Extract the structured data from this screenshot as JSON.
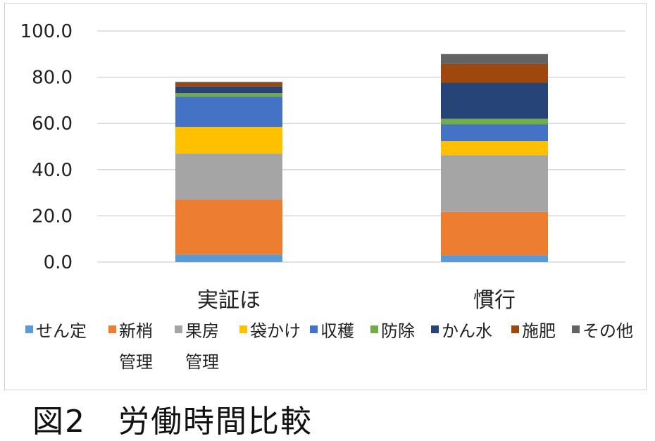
{
  "chart_data": {
    "type": "bar",
    "stacked": true,
    "title": "",
    "xlabel": "",
    "ylabel": "",
    "ylim": [
      0,
      100
    ],
    "yticks": [
      "0.0",
      "20.0",
      "40.0",
      "60.0",
      "80.0",
      "100.0"
    ],
    "grid": true,
    "legend_position": "bottom",
    "categories": [
      "実証ほ",
      "慣行"
    ],
    "series": [
      {
        "name": "せん定",
        "color": "#5b9bd5",
        "values": [
          3.3,
          3.0
        ]
      },
      {
        "name": "新梢管理",
        "color": "#ed7d31",
        "values": [
          23.7,
          18.7
        ]
      },
      {
        "name": "果房管理",
        "color": "#a5a5a5",
        "values": [
          20.0,
          24.6
        ]
      },
      {
        "name": "袋かけ",
        "color": "#ffc000",
        "values": [
          11.5,
          6.1
        ]
      },
      {
        "name": "収穫",
        "color": "#4472c4",
        "values": [
          13.1,
          7.2
        ]
      },
      {
        "name": "防除",
        "color": "#70ad47",
        "values": [
          1.5,
          2.4
        ]
      },
      {
        "name": "かん水",
        "color": "#264478",
        "values": [
          2.9,
          15.6
        ]
      },
      {
        "name": "施肥",
        "color": "#9e480e",
        "values": [
          1.6,
          8.1
        ]
      },
      {
        "name": "その他",
        "color": "#636363",
        "values": [
          0.4,
          4.3
        ]
      }
    ],
    "legend_lines": [
      {
        "items": [
          "せん定",
          "新梢",
          "果房",
          "袋かけ",
          "収穫",
          "防除",
          "かん水",
          "施肥",
          "その他"
        ]
      },
      {
        "items": [
          "管理",
          "管理"
        ]
      }
    ]
  },
  "caption": "図2　労働時間比較"
}
